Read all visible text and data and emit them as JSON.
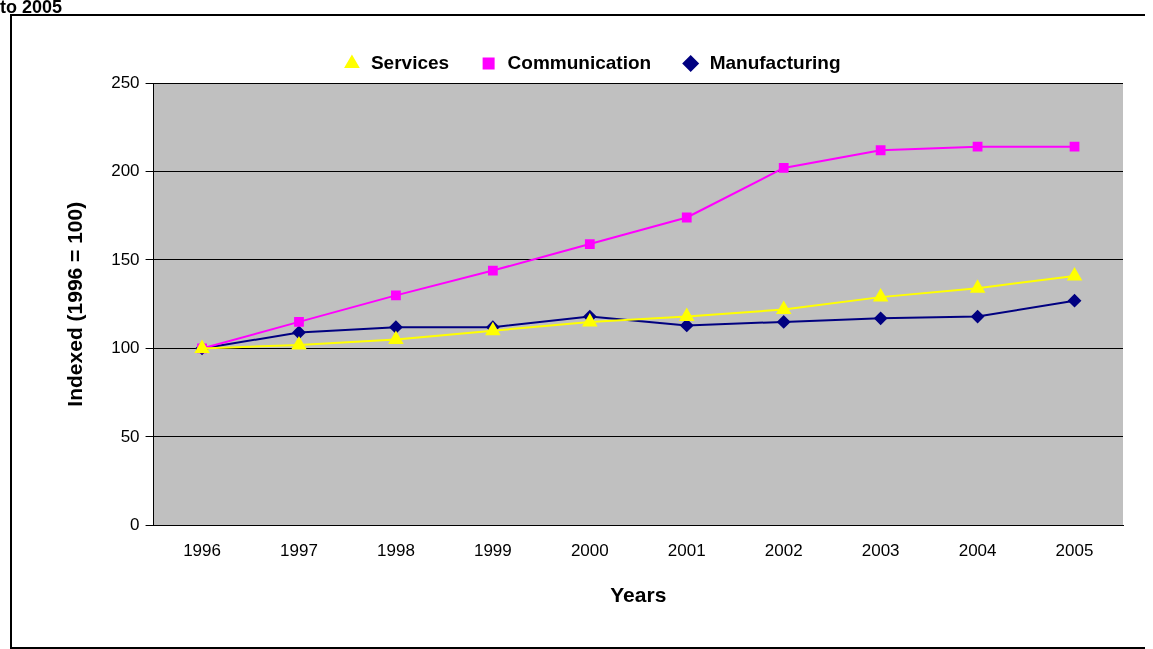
{
  "chart_data": {
    "type": "line",
    "title": "to 2005",
    "xlabel": "Years",
    "ylabel": "Indexed (1996 = 100)",
    "categories": [
      "1996",
      "1997",
      "1998",
      "1999",
      "2000",
      "2001",
      "2002",
      "2003",
      "2004",
      "2005"
    ],
    "series": [
      {
        "name": "Manufacturing",
        "color": "#000080",
        "marker": "diamond",
        "values": [
          100,
          109,
          112,
          112,
          118,
          113,
          115,
          117,
          118,
          127
        ]
      },
      {
        "name": "Communication",
        "color": "#ff00ff",
        "marker": "square",
        "values": [
          100,
          115,
          130,
          144,
          159,
          174,
          202,
          212,
          214,
          214
        ]
      },
      {
        "name": "Services",
        "color": "#ffff00",
        "marker": "triangle",
        "values": [
          100,
          102,
          105,
          110,
          115,
          118,
          122,
          129,
          134,
          141
        ]
      }
    ],
    "ylim": [
      0,
      250
    ],
    "yticks": [
      0,
      50,
      100,
      150,
      200,
      250
    ],
    "grid": "y",
    "legend": "top",
    "line_style": "solid"
  }
}
